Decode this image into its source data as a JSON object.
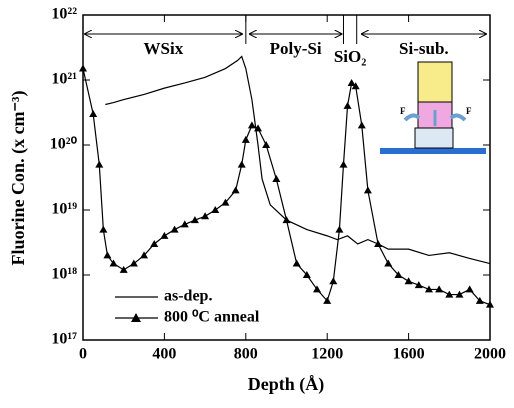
{
  "chart_data": {
    "type": "line",
    "x_label": "Depth (Å)",
    "y_label": "Fluorine Con. (x cm⁻³)",
    "xlim": [
      0,
      2000
    ],
    "xticks": [
      0,
      400,
      800,
      1200,
      1600,
      2000
    ],
    "ylim": [
      1e+17,
      1e+22
    ],
    "yscale": "log",
    "yticks": [
      {
        "value": 1e+17,
        "label": "10¹⁷"
      },
      {
        "value": 1e+18,
        "label": "10¹⁸"
      },
      {
        "value": 1e+19,
        "label": "10¹⁹"
      },
      {
        "value": 1e+20,
        "label": "10²⁰"
      },
      {
        "value": 1e+21,
        "label": "10²¹"
      },
      {
        "value": 1e+22,
        "label": "10²²"
      }
    ],
    "legend": "lower left",
    "regions": [
      {
        "label": "WSix",
        "start": 0,
        "end": 790
      },
      {
        "label": "Poly-Si",
        "start": 810,
        "end": 1280
      },
      {
        "label": "SiO₂",
        "start": 1280,
        "end": 1345
      },
      {
        "label": "Si-sub.",
        "start": 1360,
        "end": 1990
      }
    ],
    "inset": {
      "labels": [
        "F",
        "F"
      ]
    },
    "series": [
      {
        "name": "as-dep.",
        "color": "#000000",
        "marker": "none",
        "x": [
          110,
          150,
          200,
          300,
          400,
          500,
          600,
          700,
          760,
          780,
          800,
          830,
          860,
          880,
          920,
          1000,
          1100,
          1200,
          1250,
          1300,
          1350,
          1400,
          1450,
          1500,
          1600,
          1700,
          1800,
          1900,
          2000
        ],
        "values": [
          4.2e+20,
          4.5e+20,
          5e+20,
          6e+20,
          7.5e+20,
          9e+20,
          1.1e+21,
          1.5e+21,
          2e+21,
          2.3e+21,
          1.5e+21,
          5e+20,
          1e+20,
          3e+19,
          1.2e+19,
          7e+18,
          5e+18,
          4e+18,
          3.5e+18,
          4e+18,
          3e+18,
          3.5e+18,
          3e+18,
          2.5e+18,
          2.5e+18,
          2e+18,
          2.2e+18,
          1.8e+18,
          1.5e+18
        ]
      },
      {
        "name": "800 ⁰C anneal",
        "color": "#000000",
        "marker": "triangle",
        "x": [
          0,
          50,
          80,
          100,
          120,
          150,
          200,
          250,
          300,
          350,
          400,
          450,
          500,
          550,
          600,
          650,
          700,
          750,
          780,
          800,
          830,
          860,
          900,
          950,
          1000,
          1050,
          1100,
          1150,
          1200,
          1230,
          1260,
          1280,
          1300,
          1320,
          1340,
          1370,
          1400,
          1450,
          1500,
          1550,
          1600,
          1650,
          1700,
          1750,
          1800,
          1850,
          1900,
          1950,
          2000
        ],
        "values": [
          1.5e+21,
          3e+20,
          5e+19,
          5e+18,
          2e+18,
          1.5e+18,
          1.2e+18,
          1.5e+18,
          2e+18,
          3e+18,
          4e+18,
          5e+18,
          6e+18,
          7e+18,
          8e+18,
          1e+19,
          1.3e+19,
          2e+19,
          5e+19,
          1.2e+20,
          2e+20,
          1.8e+20,
          1e+20,
          3e+19,
          7e+18,
          1.5e+18,
          1e+18,
          6e+17,
          4e+17,
          8e+17,
          5e+18,
          5e+19,
          4e+20,
          9e+20,
          8e+20,
          2e+20,
          2e+19,
          3e+18,
          1.5e+18,
          1e+18,
          8e+17,
          7e+17,
          6e+17,
          6e+17,
          5e+17,
          5e+17,
          6e+17,
          4e+17,
          3.5e+17
        ]
      }
    ]
  }
}
